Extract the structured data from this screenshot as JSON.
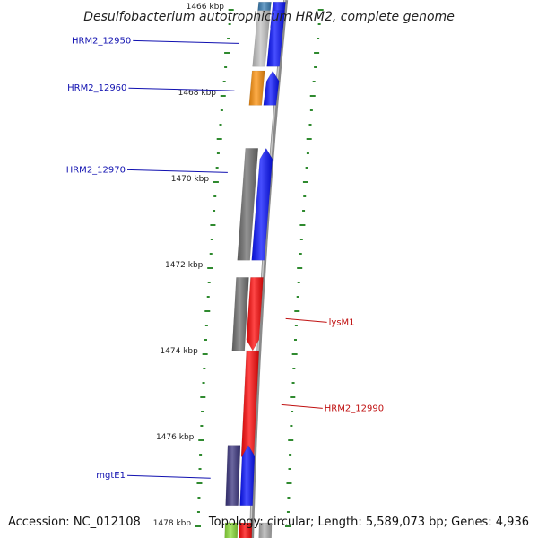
{
  "title": "Desulfobacterium autotrophicum HRM2, complete genome",
  "footer": {
    "accession": "Accession: NC_012108",
    "summary": "Topology: circular; Length: 5,589,073 bp; Genes: 4,936"
  },
  "colors": {
    "backbone": "#8a8a8a",
    "grid_dots": "#2f8a2f",
    "forward_label": "#1010b0",
    "reverse_label": "#c01010",
    "gene_blue": "#0a14ff",
    "gene_red": "#ff0a0a",
    "gene_gray": "#707070",
    "gene_orange": "#ff9410",
    "gene_purple": "#3b3580"
  },
  "chart_data": {
    "type": "genome-map",
    "unit": "kbp",
    "visible_range_kbp": [
      1465.9,
      1478.6
    ],
    "ticks": [
      {
        "kbp": 1466,
        "label": "1466 kbp"
      },
      {
        "kbp": 1468,
        "label": "1468 kbp"
      },
      {
        "kbp": 1470,
        "label": "1470 kbp"
      },
      {
        "kbp": 1472,
        "label": "1472 kbp"
      },
      {
        "kbp": 1474,
        "label": "1474 kbp"
      },
      {
        "kbp": 1476,
        "label": "1476 kbp"
      },
      {
        "kbp": 1478,
        "label": "1478 kbp"
      }
    ],
    "genes": [
      {
        "id": "g-top-blue",
        "start": 1465.9,
        "end": 1466.5,
        "strand": "+",
        "track": 1,
        "color": "#0a14ff"
      },
      {
        "id": "g-top-teal",
        "start": 1465.9,
        "end": 1466.1,
        "strand": "-",
        "track": 2,
        "color": "#3a7fb5"
      },
      {
        "id": "g-12950-blue",
        "start": 1466.1,
        "end": 1467.4,
        "strand": "+",
        "track": 1,
        "color": "#0a14ff"
      },
      {
        "id": "g-12950-gray",
        "start": 1466.1,
        "end": 1467.4,
        "strand": "-",
        "track": 2,
        "color": "#c4c4c4"
      },
      {
        "id": "g-12960-blue",
        "start": 1467.5,
        "end": 1468.3,
        "strand": "+",
        "track": 1,
        "color": "#0a14ff",
        "arrow": true
      },
      {
        "id": "g-12960-org",
        "start": 1467.5,
        "end": 1468.3,
        "strand": "-",
        "track": 2,
        "color": "#ff9410"
      },
      {
        "id": "g-12970-blue",
        "start": 1469.3,
        "end": 1471.9,
        "strand": "+",
        "track": 1,
        "color": "#0a14ff",
        "arrow": true
      },
      {
        "id": "g-12970-gray",
        "start": 1469.3,
        "end": 1471.9,
        "strand": "-",
        "track": 2,
        "color": "#707070"
      },
      {
        "id": "g-lysm1-red",
        "start": 1472.3,
        "end": 1474.0,
        "strand": "-",
        "track": 1,
        "color": "#ff0a0a",
        "arrow": true
      },
      {
        "id": "g-lysm1-gray",
        "start": 1472.3,
        "end": 1474.0,
        "strand": "+",
        "track": 2,
        "color": "#707070"
      },
      {
        "id": "g-12990-red",
        "start": 1474.0,
        "end": 1476.7,
        "strand": "-",
        "track": 1,
        "color": "#ff0a0a",
        "arrow": true
      },
      {
        "id": "g-mgte1-blue",
        "start": 1476.2,
        "end": 1477.6,
        "strand": "+",
        "track": 1,
        "color": "#0a14ff",
        "arrow": true
      },
      {
        "id": "g-mgte1-purp",
        "start": 1476.2,
        "end": 1477.6,
        "strand": "-",
        "track": 2,
        "color": "#3b3580"
      },
      {
        "id": "g-bot-red",
        "start": 1478.0,
        "end": 1478.6,
        "strand": "-",
        "track": 1,
        "color": "#ff0a0a"
      },
      {
        "id": "g-bot-green",
        "start": 1478.0,
        "end": 1478.6,
        "strand": "+",
        "track": 2,
        "color": "#8ee03a"
      },
      {
        "id": "g-bot-gray",
        "start": 1478.0,
        "end": 1478.6,
        "strand": "-",
        "track": 3,
        "color": "#b0b0b0"
      }
    ],
    "labels": [
      {
        "text": "HRM2_12950",
        "kbp": 1466.8,
        "side": "left",
        "color": "#1010b0"
      },
      {
        "text": "HRM2_12960",
        "kbp": 1467.9,
        "side": "left",
        "color": "#1010b0"
      },
      {
        "text": "HRM2_12970",
        "kbp": 1469.8,
        "side": "left",
        "color": "#1010b0"
      },
      {
        "text": "lysM1",
        "kbp": 1473.3,
        "side": "right",
        "color": "#c01010"
      },
      {
        "text": "HRM2_12990",
        "kbp": 1475.3,
        "side": "right",
        "color": "#c01010"
      },
      {
        "text": "mgtE1",
        "kbp": 1476.9,
        "side": "left",
        "color": "#1010b0"
      }
    ]
  }
}
